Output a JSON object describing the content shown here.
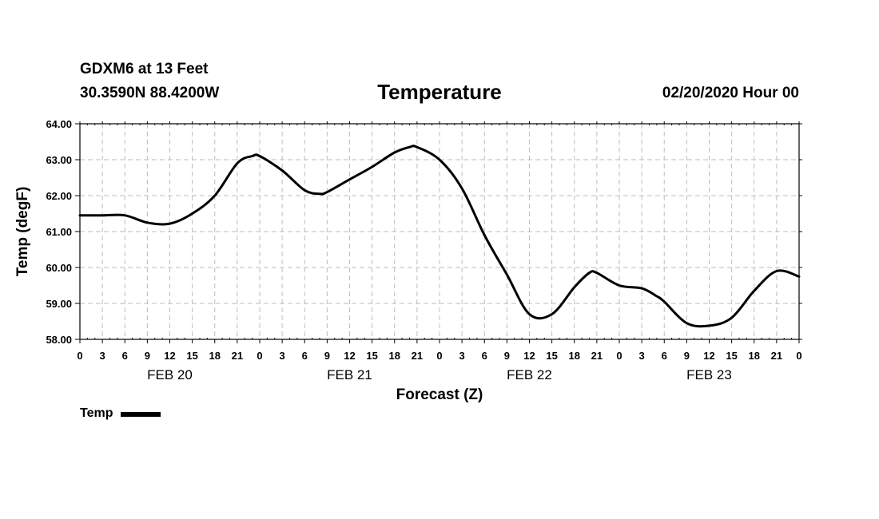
{
  "header": {
    "station": "GDXM6 at 13 Feet",
    "coords": "30.3590N 88.4200W",
    "run": "02/20/2020 Hour 00"
  },
  "chart_data": {
    "type": "line",
    "title": "Temperature",
    "xlabel": "Forecast (Z)",
    "ylabel": "Temp (degF)",
    "ylim": [
      58.0,
      64.0
    ],
    "xlim": [
      0,
      96
    ],
    "yticks": [
      "58.00",
      "59.00",
      "60.00",
      "61.00",
      "62.00",
      "63.00",
      "64.00"
    ],
    "xtick_labels": [
      "0",
      "3",
      "6",
      "9",
      "12",
      "15",
      "18",
      "21",
      "0",
      "3",
      "6",
      "9",
      "12",
      "15",
      "18",
      "21",
      "0",
      "3",
      "6",
      "9",
      "12",
      "15",
      "18",
      "21",
      "0",
      "3",
      "6",
      "9",
      "12",
      "15",
      "18",
      "21",
      "0"
    ],
    "day_labels": [
      {
        "label": "FEB 20",
        "hour": 12
      },
      {
        "label": "FEB 21",
        "hour": 36
      },
      {
        "label": "FEB 22",
        "hour": 60
      },
      {
        "label": "FEB 23",
        "hour": 84
      }
    ],
    "grid": true,
    "legend_position": "bottom-left",
    "series": [
      {
        "name": "Temp",
        "color": "#000000",
        "x": [
          0,
          3,
          6,
          9,
          12,
          15,
          18,
          21,
          23,
          24,
          27,
          30,
          32,
          33,
          36,
          39,
          42,
          44,
          45,
          48,
          51,
          54,
          57,
          60,
          63,
          66,
          68,
          69,
          72,
          75,
          77,
          78,
          81,
          84,
          87,
          90,
          93,
          96
        ],
        "values": [
          61.45,
          61.45,
          61.45,
          61.25,
          61.22,
          61.5,
          62.0,
          62.9,
          63.1,
          63.1,
          62.7,
          62.15,
          62.05,
          62.1,
          62.45,
          62.8,
          63.2,
          63.35,
          63.35,
          63.0,
          62.2,
          60.9,
          59.8,
          58.7,
          58.7,
          59.45,
          59.85,
          59.85,
          59.5,
          59.42,
          59.2,
          59.05,
          58.45,
          58.38,
          58.6,
          59.35,
          59.9,
          59.75
        ]
      }
    ]
  }
}
